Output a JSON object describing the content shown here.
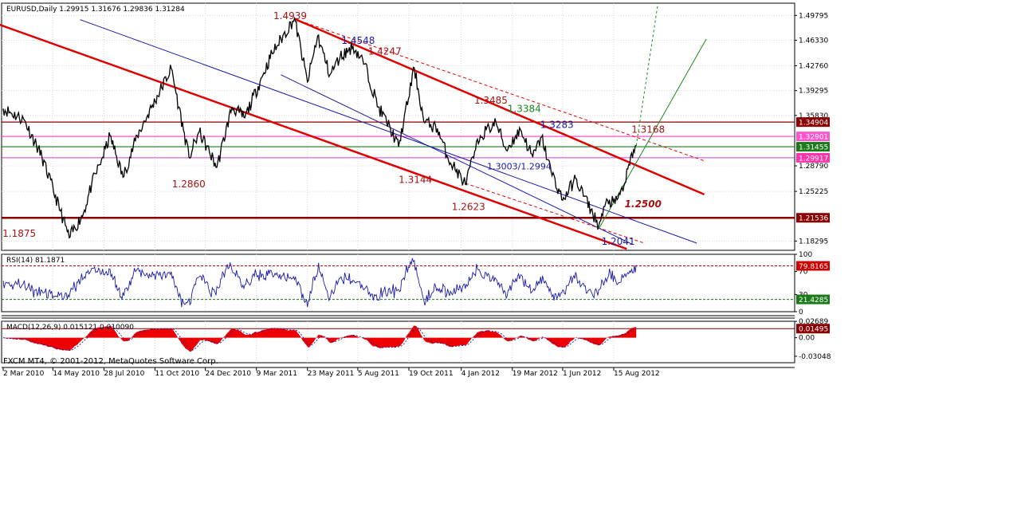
{
  "chart_data": {
    "type": "line",
    "main": {
      "header": "EURUSD,Daily  1.29915 1.31676 1.29836 1.31284",
      "symbol": "EURUSD",
      "timeframe": "Daily",
      "ohlc": [
        1.29915,
        1.31676,
        1.29836,
        1.31284
      ],
      "ylim": [
        1.17,
        1.515
      ],
      "y_ticks": [
        "1.49795",
        "1.46330",
        "1.42760",
        "1.39295",
        "1.35830",
        "1.28790",
        "1.25225",
        "1.18295"
      ],
      "x_ticks": [
        "2 Mar 2010",
        "14 May 2010",
        "28 Jul 2010",
        "11 Oct 2010",
        "24 Dec 2010",
        "9 Mar 2011",
        "23 May 2011",
        "5 Aug 2011",
        "19 Oct 2011",
        "4 Jan 2012",
        "19 Mar 2012",
        "1 Jun 2012",
        "15 Aug 2012"
      ],
      "price_path": [
        [
          "2 Mar 2010",
          1.368
        ],
        [
          "2 Apr 2010",
          1.352
        ],
        [
          "28 Apr 2010",
          1.3
        ],
        [
          "25 May 2010",
          1.225
        ],
        [
          "7 Jun 2010",
          1.1875
        ],
        [
          "28 Jun 2010",
          1.222
        ],
        [
          "10 Jul 2010",
          1.262
        ],
        [
          "26 Jul 2010",
          1.3
        ],
        [
          "6 Aug 2010",
          1.33
        ],
        [
          "25 Aug 2010",
          1.272
        ],
        [
          "15 Sep 2010",
          1.33
        ],
        [
          "4 Nov 2010",
          1.424
        ],
        [
          "15 Nov 2010",
          1.37
        ],
        [
          "30 Nov 2010",
          1.3
        ],
        [
          "15 Dec 2010",
          1.335
        ],
        [
          "10 Jan 2011",
          1.286
        ],
        [
          "1 Feb 2011",
          1.37
        ],
        [
          "20 Feb 2011",
          1.355
        ],
        [
          "20 Mar 2011",
          1.418
        ],
        [
          "1 Apr 2011",
          1.445
        ],
        [
          "4 May 2011",
          1.4939
        ],
        [
          "23 May 2011",
          1.405
        ],
        [
          "7 Jun 2011",
          1.4695
        ],
        [
          "25 Jun 2011",
          1.415
        ],
        [
          "10 Jul 2011",
          1.44
        ],
        [
          "29 Jul 2011",
          1.4548
        ],
        [
          "15 Aug 2011",
          1.43
        ],
        [
          "4 Sep 2011",
          1.37
        ],
        [
          "22 Sep 2011",
          1.34
        ],
        [
          "4 Oct 2011",
          1.3144
        ],
        [
          "27 Oct 2011",
          1.4247
        ],
        [
          "10 Nov 2011",
          1.35
        ],
        [
          "30 Nov 2011",
          1.34
        ],
        [
          "15 Dec 2011",
          1.3
        ],
        [
          "10 Jan 2012",
          1.2623
        ],
        [
          "25 Jan 2012",
          1.31
        ],
        [
          "1 Feb 2012",
          1.33
        ],
        [
          "24 Feb 2012",
          1.3485
        ],
        [
          "10 Mar 2012",
          1.31
        ],
        [
          "31 Mar 2012",
          1.3384
        ],
        [
          "18 Apr 2012",
          1.3
        ],
        [
          "1 May 2012",
          1.3283
        ],
        [
          "15 May 2012",
          1.28
        ],
        [
          "1 Jun 2012",
          1.24
        ],
        [
          "20 Jun 2012",
          1.27
        ],
        [
          "24 Jul 2012",
          1.2041
        ],
        [
          "6 Aug 2012",
          1.24
        ],
        [
          "17 Aug 2012",
          1.235
        ],
        [
          "30 Aug 2012",
          1.26
        ],
        [
          "13 Sep 2012",
          1.31
        ],
        [
          "17 Sep 2012",
          1.3168
        ]
      ],
      "annotations": [
        {
          "text": "1.4939",
          "date": "3 Apr 2011",
          "price": 1.493,
          "color": "#aa1111"
        },
        {
          "text": "1.4548",
          "date": "12 Jul 2011",
          "price": 1.458,
          "color": "#1a1aaa"
        },
        {
          "text": "1.4247",
          "date": "20 Aug 2011",
          "price": 1.443,
          "color": "#aa1111"
        },
        {
          "text": "1.3485",
          "date": "23 Jan 2012",
          "price": 1.375,
          "color": "#aa1111"
        },
        {
          "text": "1.3384",
          "date": "12 Mar 2012",
          "price": 1.363,
          "color": "#1a8a1a"
        },
        {
          "text": "1.3283",
          "date": "29 Apr 2012",
          "price": 1.341,
          "color": "#1a1aaa"
        },
        {
          "text": "1.3168",
          "date": "10 Sep 2012",
          "price": 1.334,
          "color": "#aa1111"
        },
        {
          "text": "1.2860",
          "date": "5 Nov 2010",
          "price": 1.258,
          "color": "#aa1111"
        },
        {
          "text": "1.3144",
          "date": "4 Oct 2011",
          "price": 1.264,
          "color": "#aa1111"
        },
        {
          "text": "1.3003/1.2994",
          "date": "11 Feb 2012",
          "price": 1.283,
          "color": "#1a1aaa"
        },
        {
          "text": "1.2623",
          "date": "21 Dec 2011",
          "price": 1.226,
          "color": "#aa1111"
        },
        {
          "text": "1.2500",
          "date": "31 Aug 2012",
          "price": 1.23,
          "color": "#aa1111",
          "italic": true
        },
        {
          "text": "1.1875",
          "date": "1 Mar 2010",
          "price": 1.189,
          "color": "#aa1111"
        },
        {
          "text": "1.2041",
          "date": "28 Jul 2012",
          "price": 1.178,
          "color": "#1a1aaa"
        }
      ],
      "hlines": [
        {
          "price": 1.349,
          "color": "#8b0000",
          "width": 1.2,
          "label": "1.34904",
          "label_bg": "#8b0000"
        },
        {
          "price": 1.329,
          "color": "#ff55cc",
          "width": 1.2,
          "label": "1.32901",
          "label_bg": "#ff55cc"
        },
        {
          "price": 1.3146,
          "color": "#1a7a1a",
          "width": 1.2,
          "label": "1.31455",
          "label_bg": "#1a7a1a"
        },
        {
          "price": 1.2992,
          "color": "#cc44cc",
          "width": 1,
          "label": "1.29917",
          "label_bg": "#ff33aa"
        },
        {
          "price": 1.2154,
          "color": "#8b0000",
          "width": 2.5,
          "label": "1.21536",
          "label_bg": "#8b0000"
        }
      ],
      "trendlines": [
        {
          "from": [
            "4 Feb 2010",
            1.492
          ],
          "to": [
            "3 Sep 2012",
            1.172
          ],
          "color": "#e00000",
          "width": 2.5
        },
        {
          "from": [
            "4 May 2011",
            1.493
          ],
          "to": [
            "26 Dec 2012",
            1.248
          ],
          "color": "#e00000",
          "width": 2.5
        },
        {
          "from": [
            "4 May 2011",
            1.493
          ],
          "to": [
            "26 Dec 2012",
            1.295
          ],
          "color": "#e00000",
          "width": 1,
          "dash": "4 3"
        },
        {
          "from": [
            "23 Jun 2010",
            1.492
          ],
          "to": [
            "15 Dec 2012",
            1.18
          ],
          "color": "#1a1aaa",
          "width": 1
        },
        {
          "from": [
            "14 Apr 2011",
            1.415
          ],
          "to": [
            "10 Sep 2012",
            1.179
          ],
          "color": "#1a1aaa",
          "width": 1
        },
        {
          "from": [
            "10 Jan 2012",
            1.2635
          ],
          "to": [
            "29 Sep 2012",
            1.18
          ],
          "color": "#e00000",
          "width": 1,
          "dash": "4 3"
        },
        {
          "from": [
            "24 Jul 2012",
            1.2
          ],
          "to": [
            "29 Dec 2012",
            1.465
          ],
          "color": "#1a8a1a",
          "width": 1
        },
        {
          "from": [
            "17 Sep 2012",
            1.316
          ],
          "to": [
            "19 Oct 2012",
            1.515
          ],
          "color": "#1a8a1a",
          "width": 1,
          "dash": "3 3"
        }
      ]
    },
    "rsi": {
      "header": "RSI(14) 81.1871",
      "value": 81.1871,
      "ylim": [
        0,
        100
      ],
      "y_ticks": [
        "100",
        "70",
        "30",
        "0"
      ],
      "levels": [
        {
          "value": 79.8165,
          "color": "#cc0000",
          "dash": "3 2",
          "label": "79.8165",
          "label_bg": "#cc0000"
        },
        {
          "value": 21.4285,
          "color": "#1a7a1a",
          "dash": "3 2",
          "label": "21.4285",
          "label_bg": "#1a7a1a"
        }
      ],
      "line_color": "#1a1aaa"
    },
    "macd": {
      "header": "MACD(12,26,9) 0.015121 0.010090",
      "main": 0.015121,
      "signal": 0.01009,
      "ylim": [
        -0.041,
        0.027
      ],
      "y_ticks": [
        "0.02689",
        "0.00",
        "-0.03048"
      ],
      "levels": [
        {
          "value": 0.01495,
          "label": "0.01495",
          "label_bg": "#8b0000"
        }
      ],
      "hist_color": "#ee0000",
      "signal_color": "#1a1aaa"
    }
  },
  "footer": {
    "copyright": "FXCM MT4, © 2001-2012, MetaQuotes Software Corp."
  }
}
